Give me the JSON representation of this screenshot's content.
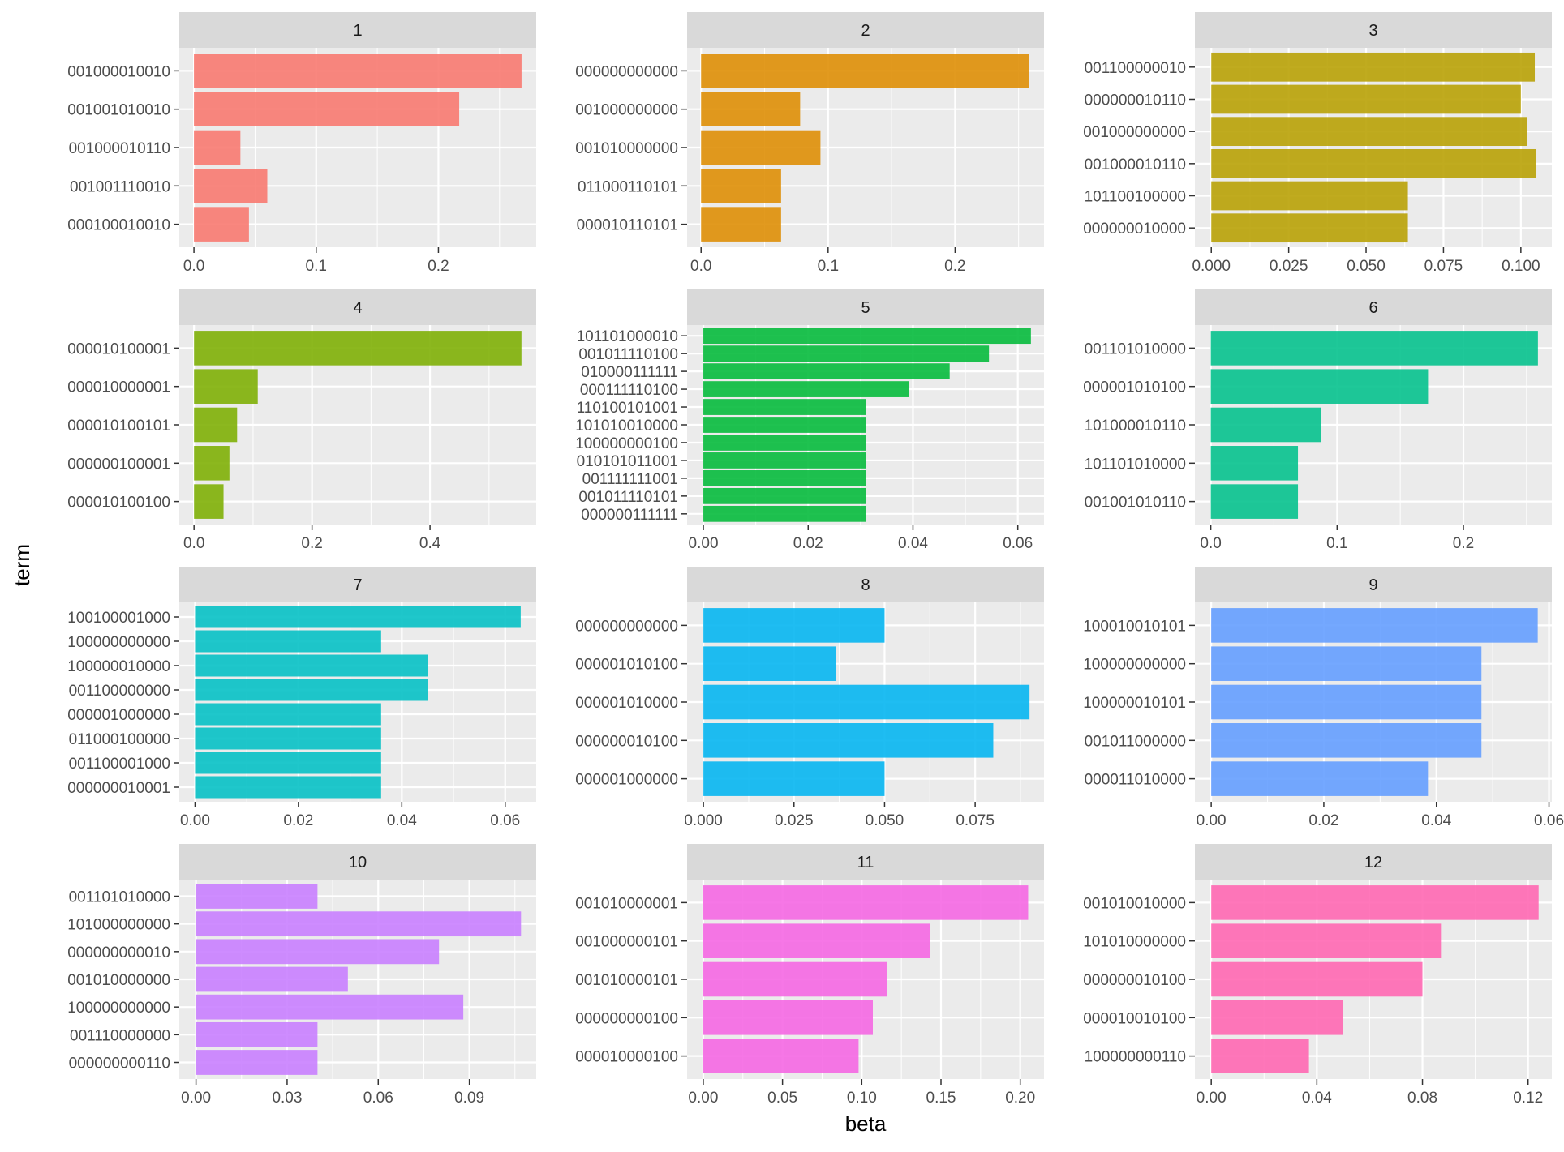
{
  "chart_data": {
    "type": "bar",
    "orientation": "horizontal",
    "facet_layout": "4x3",
    "xlabel": "beta",
    "ylabel": "term",
    "grid": true,
    "panels": [
      {
        "title": "1",
        "color": "#F8766D",
        "categories": [
          "001000010010",
          "001001010010",
          "001000010110",
          "001001110010",
          "000100010010"
        ],
        "values": [
          0.268,
          0.217,
          0.038,
          0.06,
          0.045
        ],
        "xlim": [
          -0.012,
          0.28
        ],
        "xticks": [
          0.0,
          0.1,
          0.2
        ],
        "xtick_labels": [
          "0.0",
          "0.1",
          "0.2"
        ]
      },
      {
        "title": "2",
        "color": "#DE8C00",
        "categories": [
          "000000000000",
          "001000000000",
          "001010000000",
          "011000110101",
          "000010110101"
        ],
        "values": [
          0.258,
          0.078,
          0.094,
          0.063,
          0.063
        ],
        "xlim": [
          -0.011,
          0.27
        ],
        "xticks": [
          0.0,
          0.1,
          0.2
        ],
        "xtick_labels": [
          "0.0",
          "0.1",
          "0.2"
        ]
      },
      {
        "title": "3",
        "color": "#B79F00",
        "categories": [
          "001100000010",
          "000000010110",
          "001000000000",
          "001000010110",
          "101100100000",
          "000000010000"
        ],
        "values": [
          0.1045,
          0.1,
          0.102,
          0.105,
          0.0635,
          0.0635
        ],
        "xlim": [
          -0.0053,
          0.11
        ],
        "xticks": [
          0.0,
          0.025,
          0.05,
          0.075,
          0.1
        ],
        "xtick_labels": [
          "0.000",
          "0.025",
          "0.050",
          "0.075",
          "0.100"
        ]
      },
      {
        "title": "4",
        "color": "#7CAE00",
        "categories": [
          "000010100001",
          "000010000001",
          "000010100101",
          "000000100001",
          "000010100100"
        ],
        "values": [
          0.555,
          0.108,
          0.073,
          0.06,
          0.05
        ],
        "xlim": [
          -0.025,
          0.58
        ],
        "xticks": [
          0.0,
          0.2,
          0.4
        ],
        "xtick_labels": [
          "0.0",
          "0.2",
          "0.4"
        ]
      },
      {
        "title": "5",
        "color": "#00BA38",
        "categories": [
          "101101000010",
          "001011110100",
          "010000111111",
          "000111110100",
          "110100101001",
          "101010010000",
          "100000000100",
          "010101011001",
          "001111111001",
          "001011110101",
          "000000111111"
        ],
        "values": [
          0.0625,
          0.0545,
          0.047,
          0.0393,
          0.031,
          0.031,
          0.031,
          0.031,
          0.031,
          0.031,
          0.031
        ],
        "xlim": [
          -0.0031,
          0.065
        ],
        "xticks": [
          0.0,
          0.02,
          0.04,
          0.06
        ],
        "xtick_labels": [
          "0.00",
          "0.02",
          "0.04",
          "0.06"
        ]
      },
      {
        "title": "6",
        "color": "#00C08B",
        "categories": [
          "001101010000",
          "000001010100",
          "101000010110",
          "101101010000",
          "001001010110"
        ],
        "values": [
          0.259,
          0.172,
          0.087,
          0.069,
          0.069
        ],
        "xlim": [
          -0.0126,
          0.27
        ],
        "xticks": [
          0.0,
          0.1,
          0.2
        ],
        "xtick_labels": [
          "0.0",
          "0.1",
          "0.2"
        ]
      },
      {
        "title": "7",
        "color": "#00BFC4",
        "categories": [
          "100100001000",
          "100000000000",
          "100000010000",
          "001100000000",
          "000001000000",
          "011000100000",
          "001100001000",
          "000000010001"
        ],
        "values": [
          0.063,
          0.036,
          0.045,
          0.045,
          0.036,
          0.036,
          0.036,
          0.036
        ],
        "xlim": [
          -0.00305,
          0.066
        ],
        "xticks": [
          0.0,
          0.02,
          0.04,
          0.06
        ],
        "xtick_labels": [
          "0.00",
          "0.02",
          "0.04",
          "0.06"
        ]
      },
      {
        "title": "8",
        "color": "#00B4F0",
        "categories": [
          "000000000000",
          "000001010100",
          "000001010000",
          "000000010100",
          "000001000000"
        ],
        "values": [
          0.05,
          0.0365,
          0.09,
          0.08,
          0.05
        ],
        "xlim": [
          -0.0045,
          0.094
        ],
        "xticks": [
          0.0,
          0.025,
          0.05,
          0.075
        ],
        "xtick_labels": [
          "0.000",
          "0.025",
          "0.050",
          "0.075"
        ]
      },
      {
        "title": "9",
        "color": "#619CFF",
        "categories": [
          "100010010101",
          "100000000000",
          "100000010101",
          "001011000000",
          "000011010000"
        ],
        "values": [
          0.058,
          0.048,
          0.048,
          0.048,
          0.0385
        ],
        "xlim": [
          -0.0029,
          0.0605
        ],
        "xticks": [
          0.0,
          0.02,
          0.04,
          0.06
        ],
        "xtick_labels": [
          "0.00",
          "0.02",
          "0.04",
          "0.06"
        ]
      },
      {
        "title": "10",
        "color": "#C77CFF",
        "categories": [
          "001101010000",
          "101000000000",
          "000000000010",
          "001010000000",
          "100000000000",
          "001110000000",
          "000000000110"
        ],
        "values": [
          0.04,
          0.107,
          0.08,
          0.05,
          0.088,
          0.04,
          0.04
        ],
        "xlim": [
          -0.0055,
          0.112
        ],
        "xticks": [
          0.0,
          0.03,
          0.06,
          0.09
        ],
        "xtick_labels": [
          "0.00",
          "0.03",
          "0.06",
          "0.09"
        ]
      },
      {
        "title": "11",
        "color": "#F564E3",
        "categories": [
          "001010000001",
          "001000000101",
          "001010000101",
          "000000000100",
          "000010000100"
        ],
        "values": [
          0.205,
          0.143,
          0.116,
          0.107,
          0.098
        ],
        "xlim": [
          -0.0102,
          0.215
        ],
        "xticks": [
          0.0,
          0.05,
          0.1,
          0.15,
          0.2
        ],
        "xtick_labels": [
          "0.00",
          "0.05",
          "0.10",
          "0.15",
          "0.20"
        ]
      },
      {
        "title": "12",
        "color": "#FF64B0",
        "categories": [
          "001010010000",
          "101010000000",
          "000000010100",
          "000010010100",
          "100000000110"
        ],
        "values": [
          0.124,
          0.087,
          0.08,
          0.05,
          0.037
        ],
        "xlim": [
          -0.0062,
          0.129
        ],
        "xticks": [
          0.0,
          0.04,
          0.08,
          0.12
        ],
        "xtick_labels": [
          "0.00",
          "0.04",
          "0.08",
          "0.12"
        ]
      }
    ]
  }
}
